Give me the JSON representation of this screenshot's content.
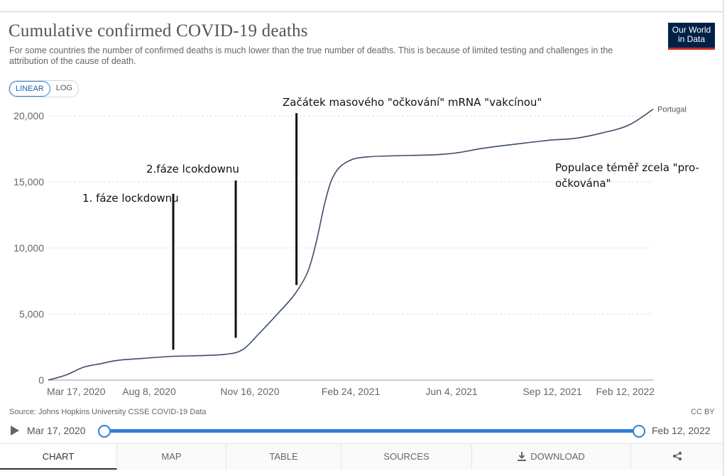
{
  "header": {
    "title": "Cumulative confirmed COVID-19 deaths",
    "subtitle": "For some countries the number of confirmed deaths is much lower than the true number of deaths. This is because of limited testing and challenges in the attribution of the cause of death.",
    "logo_line1": "Our World",
    "logo_line2": "in Data"
  },
  "scale_toggle": {
    "linear": "LINEAR",
    "log": "LOG",
    "selected": "LINEAR"
  },
  "chart_data": {
    "type": "line",
    "title": "Cumulative confirmed COVID-19 deaths",
    "xlabel": "",
    "ylabel": "",
    "ylim": [
      0,
      20500
    ],
    "y_ticks": [
      0,
      5000,
      10000,
      15000,
      20000
    ],
    "y_tick_labels": [
      "0",
      "5,000",
      "10,000",
      "15,000",
      "20,000"
    ],
    "x_tick_labels": [
      "Mar 17, 2020",
      "Aug 8, 2020",
      "Nov 16, 2020",
      "Feb 24, 2021",
      "Jun 4, 2021",
      "Sep 12, 2021",
      "Feb 12, 2022"
    ],
    "xlim": [
      "2020-03-17",
      "2022-02-12"
    ],
    "grid": true,
    "series": [
      {
        "name": "Portugal",
        "color": "#3c4e66",
        "x": [
          "2020-03-17",
          "2020-04-07",
          "2020-04-27",
          "2020-05-17",
          "2020-06-06",
          "2020-07-06",
          "2020-08-08",
          "2020-09-07",
          "2020-10-07",
          "2020-10-27",
          "2020-11-16",
          "2020-12-06",
          "2020-12-26",
          "2021-01-10",
          "2021-01-20",
          "2021-01-30",
          "2021-02-09",
          "2021-02-24",
          "2021-03-21",
          "2021-06-04",
          "2021-07-01",
          "2021-08-01",
          "2021-09-12",
          "2021-10-15",
          "2021-11-15",
          "2021-12-15",
          "2022-01-15",
          "2022-02-12"
        ],
        "y": [
          0,
          400,
          980,
          1250,
          1500,
          1650,
          1800,
          1850,
          1950,
          2300,
          3600,
          5000,
          6500,
          8200,
          10500,
          13500,
          15500,
          16500,
          16900,
          17050,
          17200,
          17550,
          17900,
          18150,
          18300,
          18700,
          19300,
          20500
        ]
      }
    ],
    "annotations": [
      {
        "text": "1. fáze lockdownu",
        "date": "2020-08-08",
        "y_top": 14100,
        "y_bottom": 2300
      },
      {
        "text": "2.fáze lcokdownu",
        "date": "2020-10-19",
        "y_top": 15100,
        "y_bottom": 3200
      },
      {
        "text": "Začátek masového \"očkování\" mRNA \"vakcínou\"",
        "date": "2020-12-28",
        "y_top": 20200,
        "y_bottom": 7200
      },
      {
        "text_lines": [
          "Populace téměř zcela \"pro-",
          "očkována\""
        ]
      }
    ]
  },
  "footer": {
    "source": "Source: Johns Hopkins University CSSE COVID-19 Data",
    "license": "CC BY",
    "timeline_start": "Mar 17, 2020",
    "timeline_end": "Feb 12, 2022"
  },
  "tabs": [
    {
      "label": "CHART",
      "active": true
    },
    {
      "label": "MAP"
    },
    {
      "label": "TABLE"
    },
    {
      "label": "SOURCES"
    },
    {
      "label": "DOWNLOAD",
      "icon": "download-icon"
    },
    {
      "label": "",
      "icon": "share-icon"
    }
  ]
}
